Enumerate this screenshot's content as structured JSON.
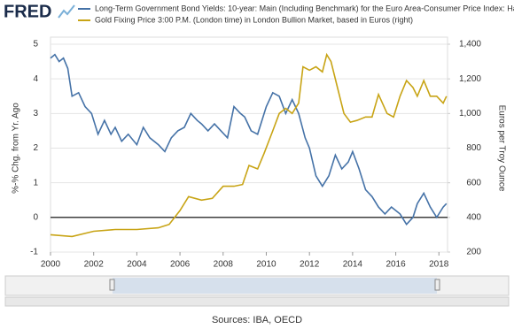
{
  "logo": "FRED",
  "sources": "Sources: IBA, OECD",
  "chart_data": {
    "type": "line",
    "y_label": "%-% Chg. from Yr. Ago",
    "y2_label": "Euros per Troy Ounce",
    "xlim": [
      2000,
      2018.4
    ],
    "xticks": [
      2000,
      2002,
      2004,
      2006,
      2008,
      2010,
      2012,
      2014,
      2016,
      2018
    ],
    "ylim": [
      -1,
      5
    ],
    "yticks": [
      -1,
      0,
      1,
      2,
      3,
      4,
      5
    ],
    "y2lim": [
      200,
      1400
    ],
    "y2ticks": [
      200,
      400,
      600,
      800,
      {
        "value": 1000,
        "label": "1,000"
      },
      {
        "value": 1200,
        "label": "1,200"
      },
      {
        "value": 1400,
        "label": "1,400"
      }
    ],
    "grid": true,
    "series": [
      {
        "name": "Long-Term Government Bond Yields: 10-year: Main (Including Benchmark) for the Euro Area-Consumer Price Index: Harmo",
        "color": "#4572a7",
        "x": [
          2000.0,
          2000.2,
          2000.4,
          2000.6,
          2000.8,
          2001.0,
          2001.3,
          2001.6,
          2001.9,
          2002.2,
          2002.5,
          2002.8,
          2003.0,
          2003.3,
          2003.6,
          2004.0,
          2004.3,
          2004.6,
          2005.0,
          2005.3,
          2005.6,
          2005.9,
          2006.2,
          2006.5,
          2006.8,
          2007.0,
          2007.3,
          2007.6,
          2007.9,
          2008.2,
          2008.5,
          2008.8,
          2009.0,
          2009.3,
          2009.6,
          2010.0,
          2010.3,
          2010.6,
          2010.9,
          2011.2,
          2011.5,
          2011.8,
          2012.0,
          2012.3,
          2012.6,
          2012.9,
          2013.2,
          2013.5,
          2013.8,
          2014.0,
          2014.3,
          2014.6,
          2014.9,
          2015.2,
          2015.5,
          2015.8,
          2016.2,
          2016.5,
          2016.8,
          2017.0,
          2017.3,
          2017.6,
          2017.9,
          2018.2,
          2018.35
        ],
        "values": [
          4.6,
          4.7,
          4.5,
          4.6,
          4.3,
          3.5,
          3.6,
          3.2,
          3.0,
          2.4,
          2.8,
          2.4,
          2.6,
          2.2,
          2.4,
          2.1,
          2.6,
          2.3,
          2.1,
          1.9,
          2.3,
          2.5,
          2.6,
          3.0,
          2.8,
          2.7,
          2.5,
          2.7,
          2.5,
          2.3,
          3.2,
          3.0,
          2.9,
          2.5,
          2.4,
          3.2,
          3.6,
          3.5,
          3.0,
          3.4,
          3.0,
          2.3,
          2.0,
          1.2,
          0.9,
          1.2,
          1.8,
          1.4,
          1.6,
          1.9,
          1.4,
          0.8,
          0.6,
          0.3,
          0.1,
          0.3,
          0.1,
          -0.2,
          0.0,
          0.4,
          0.7,
          0.3,
          0.0,
          0.3,
          0.4
        ]
      },
      {
        "name": "Gold Fixing Price 3:00 P.M. (London time) in London Bullion Market, based in Euros (right)",
        "color": "#c8a415",
        "axis": "y2",
        "x": [
          2000.0,
          2001.0,
          2002.0,
          2003.0,
          2004.0,
          2005.0,
          2005.5,
          2006.0,
          2006.4,
          2007.0,
          2007.5,
          2008.0,
          2008.5,
          2008.9,
          2009.2,
          2009.6,
          2009.9,
          2010.3,
          2010.6,
          2010.9,
          2011.2,
          2011.5,
          2011.7,
          2012.0,
          2012.3,
          2012.6,
          2012.8,
          2013.0,
          2013.3,
          2013.6,
          2013.9,
          2014.2,
          2014.6,
          2014.9,
          2015.2,
          2015.6,
          2015.9,
          2016.2,
          2016.5,
          2016.8,
          2017.0,
          2017.3,
          2017.6,
          2017.9,
          2018.2,
          2018.35
        ],
        "values": [
          300,
          290,
          320,
          330,
          330,
          340,
          360,
          440,
          520,
          500,
          510,
          580,
          580,
          590,
          700,
          680,
          770,
          900,
          1000,
          1030,
          1000,
          1060,
          1270,
          1250,
          1270,
          1240,
          1340,
          1300,
          1150,
          1000,
          950,
          960,
          980,
          980,
          1110,
          1000,
          980,
          1100,
          1190,
          1150,
          1100,
          1190,
          1100,
          1100,
          1060,
          1100
        ]
      }
    ]
  }
}
